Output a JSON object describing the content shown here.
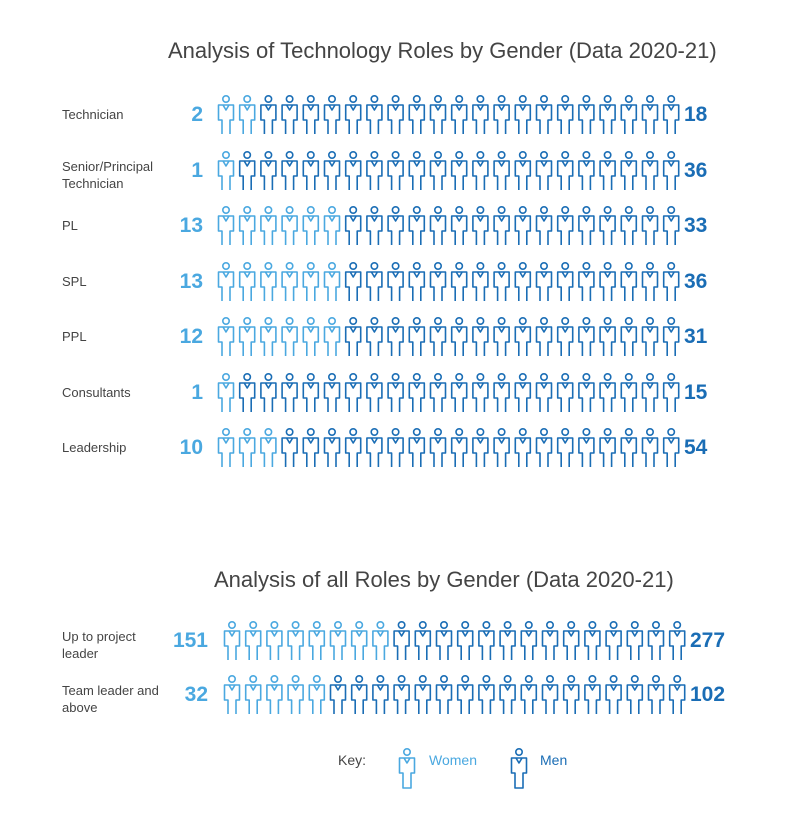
{
  "colors": {
    "women": "#4aa8e0",
    "men": "#1a6db5"
  },
  "icons_per_row": 22,
  "chart_data": [
    {
      "type": "pictograph",
      "title": "Analysis of Technology Roles by Gender (Data 2020-21)",
      "categories": [
        "Technician",
        "Senior/Principal Technician",
        "PL",
        "SPL",
        "PPL",
        "Consultants",
        "Leadership"
      ],
      "series": [
        {
          "name": "Women",
          "values": [
            2,
            1,
            13,
            13,
            12,
            1,
            10
          ]
        },
        {
          "name": "Men",
          "values": [
            18,
            36,
            33,
            36,
            31,
            15,
            54
          ]
        }
      ]
    },
    {
      "type": "pictograph",
      "title": "Analysis of all Roles by Gender (Data 2020-21)",
      "categories": [
        "Up to project leader",
        "Team leader and above"
      ],
      "series": [
        {
          "name": "Women",
          "values": [
            151,
            32
          ]
        },
        {
          "name": "Men",
          "values": [
            277,
            102
          ]
        }
      ]
    }
  ],
  "key": {
    "label": "Key:",
    "women": "Women",
    "men": "Men"
  }
}
